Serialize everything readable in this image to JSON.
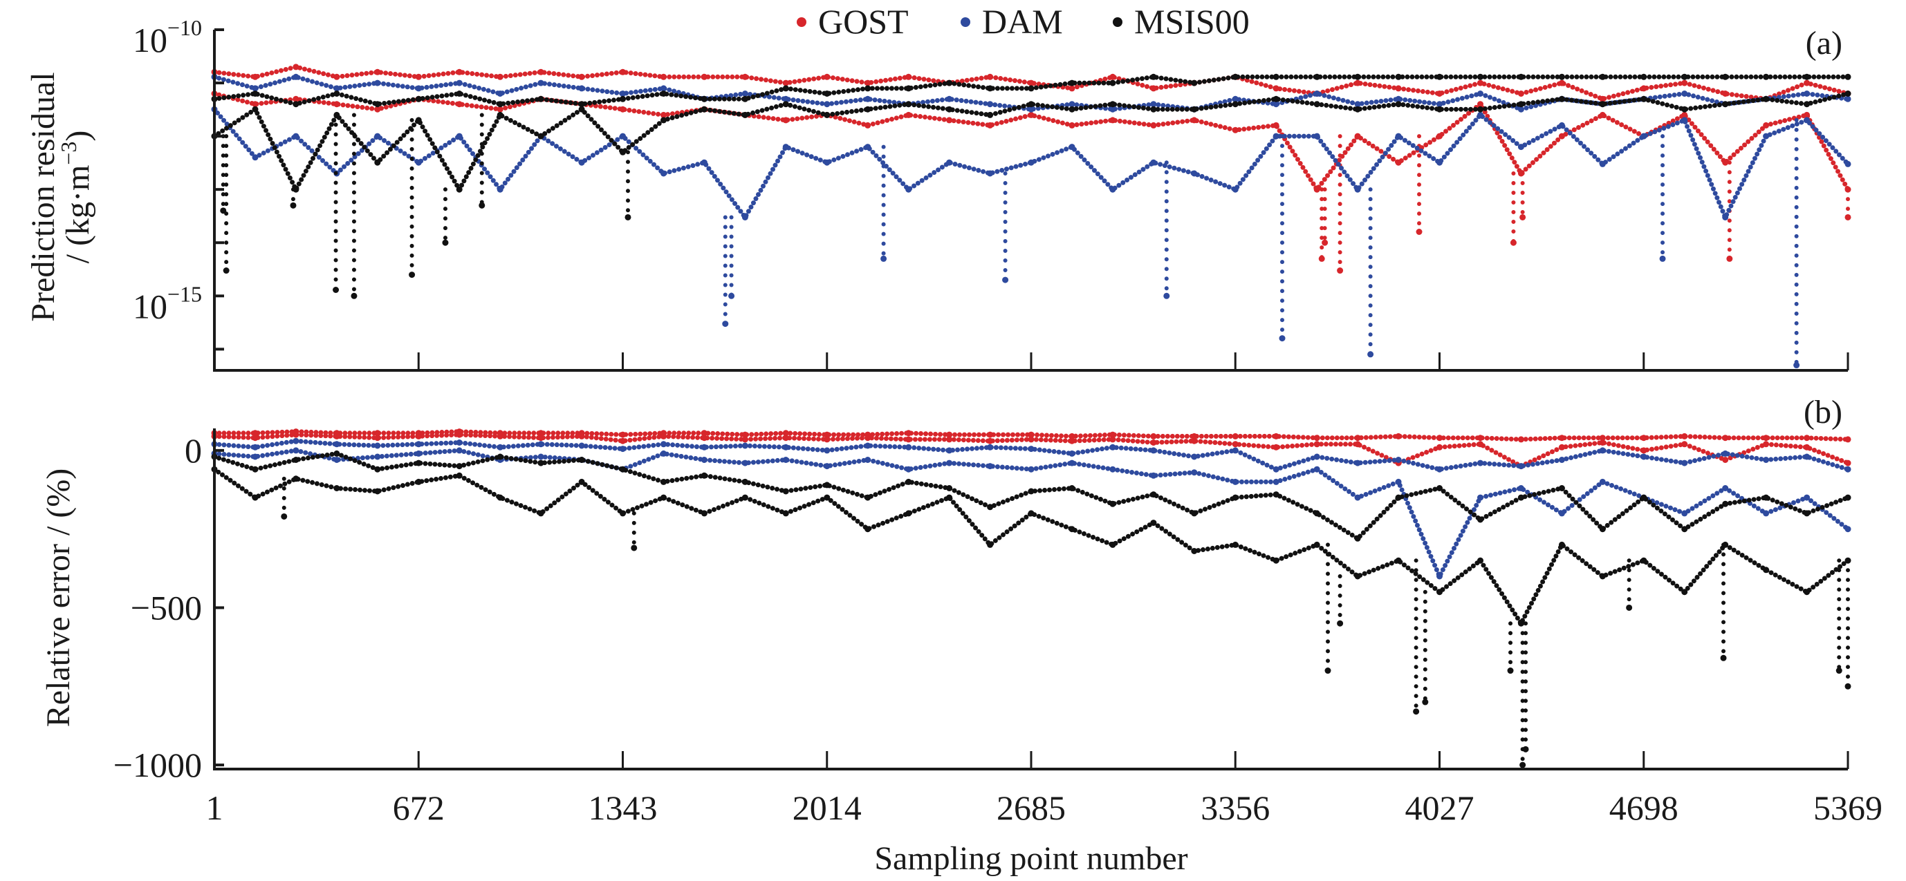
{
  "chart_data": {
    "type": "scatter",
    "legend": {
      "placement": "top-center",
      "entries": [
        {
          "label": "GOST",
          "color": "#d7262b"
        },
        {
          "label": "DAM",
          "color": "#2e4a9e"
        },
        {
          "label": "MSIS00",
          "color": "#111111"
        }
      ]
    },
    "xlabel": "Sampling point number",
    "xlim": [
      1,
      5369
    ],
    "x_ticks": [
      1,
      672,
      1343,
      2014,
      2685,
      3356,
      4027,
      4698,
      5369
    ],
    "x_tick_labels": [
      "1",
      "672",
      "1343",
      "2014",
      "2685",
      "3356",
      "4027",
      "4698",
      "5369"
    ],
    "x": [
      1,
      135,
      269,
      403,
      537,
      672,
      806,
      940,
      1074,
      1208,
      1343,
      1477,
      1611,
      1745,
      1879,
      2014,
      2148,
      2282,
      2416,
      2550,
      2685,
      2819,
      2953,
      3087,
      3221,
      3356,
      3490,
      3624,
      3758,
      3892,
      4027,
      4161,
      4295,
      4429,
      4563,
      4698,
      4832,
      4966,
      5100,
      5234,
      5369
    ],
    "panels": [
      {
        "tag": "(a)",
        "ylabel_line1": "Prediction residual",
        "ylabel_line2_pre": "/ (kg·m",
        "ylabel_line2_sup": "−3",
        "ylabel_line2_post": ")",
        "yscale": "log",
        "ylim": [
          4e-17,
          1e-10
        ],
        "y_ticks": [
          1e-10,
          1e-11,
          1e-12,
          1e-13,
          1e-14,
          1e-15,
          1e-16
        ],
        "y_tick_labels": [
          {
            "value": 1e-10,
            "base": "10",
            "exp": "−10"
          },
          {
            "value": 1e-15,
            "base": "10",
            "exp": "−15"
          }
        ],
        "series": [
          {
            "model": "GOST",
            "color": "#d7262b",
            "tracks": [
              [
                1.6e-11,
                1.3e-11,
                2e-11,
                1.3e-11,
                1.6e-11,
                1.3e-11,
                1.6e-11,
                1.3e-11,
                1.6e-11,
                1.3e-11,
                1.6e-11,
                1.3e-11,
                1.3e-11,
                1.3e-11,
                1e-11,
                1.3e-11,
                1e-11,
                1.3e-11,
                1e-11,
                1.3e-11,
                1e-11,
                7.9e-12,
                1.3e-11,
                7.9e-12,
                1e-11,
                1.3e-11,
                7.9e-12,
                6.3e-12,
                1e-11,
                7.9e-12,
                6.3e-12,
                1e-11,
                6.3e-12,
                1e-11,
                5e-12,
                7.9e-12,
                1e-11,
                6.3e-12,
                5e-12,
                1e-11,
                6.3e-12
              ],
              [
                6.3e-12,
                4e-12,
                5e-12,
                4e-12,
                3.2e-12,
                5e-12,
                4e-12,
                3.2e-12,
                5e-12,
                4e-12,
                3.2e-12,
                2.5e-12,
                3.2e-12,
                2.5e-12,
                2e-12,
                2.5e-12,
                1.6e-12,
                2.5e-12,
                2e-12,
                1.6e-12,
                2.5e-12,
                1.6e-12,
                2e-12,
                1.6e-12,
                2e-12,
                1.3e-12,
                1.6e-12,
                1e-13,
                1e-12,
                3.2e-13,
                1e-12,
                4e-12,
                2e-13,
                1e-12,
                2.5e-12,
                1e-12,
                2.5e-12,
                3.2e-13,
                1.6e-12,
                2.5e-12,
                1e-13
              ]
            ],
            "outliers": [
              [
                3640,
                5e-15
              ],
              [
                3650,
                1e-14
              ],
              [
                3700,
                3e-15
              ],
              [
                3960,
                1.6e-14
              ],
              [
                4270,
                1e-14
              ],
              [
                4300,
                3e-14
              ],
              [
                4980,
                5e-15
              ],
              [
                5369,
                3e-14
              ]
            ]
          },
          {
            "model": "DAM",
            "color": "#2e4a9e",
            "tracks": [
              [
                1.3e-11,
                7.9e-12,
                1.3e-11,
                7.9e-12,
                1e-11,
                7.9e-12,
                1e-11,
                6.3e-12,
                1e-11,
                7.9e-12,
                6.3e-12,
                7.9e-12,
                5e-12,
                6.3e-12,
                5e-12,
                4e-12,
                5e-12,
                4e-12,
                5e-12,
                4e-12,
                3.2e-12,
                4e-12,
                3.2e-12,
                4e-12,
                3.2e-12,
                5e-12,
                4e-12,
                6.3e-12,
                4e-12,
                5e-12,
                4e-12,
                6.3e-12,
                3.2e-12,
                5e-12,
                4e-12,
                5e-12,
                6.3e-12,
                4e-12,
                5e-12,
                6.3e-12,
                5e-12
              ],
              [
                3.2e-12,
                4e-13,
                1e-12,
                2e-13,
                1e-12,
                3.2e-13,
                1e-12,
                1e-13,
                1e-12,
                3.2e-13,
                1e-12,
                2e-13,
                3.2e-13,
                3e-14,
                6.3e-13,
                3.2e-13,
                6.3e-13,
                1e-13,
                3.2e-13,
                2e-13,
                3.2e-13,
                6.3e-13,
                1e-13,
                3.2e-13,
                2e-13,
                1e-13,
                1e-12,
                1e-12,
                1e-13,
                1e-12,
                3.2e-13,
                2.5e-12,
                6.3e-13,
                1.6e-12,
                3e-13,
                1e-12,
                2e-12,
                3e-14,
                1e-12,
                2e-12,
                3e-13
              ]
            ],
            "outliers": [
              [
                1680,
                3e-16
              ],
              [
                1700,
                1e-15
              ],
              [
                2200,
                5e-15
              ],
              [
                2600,
                2e-15
              ],
              [
                3130,
                1e-15
              ],
              [
                3510,
                1.6e-16
              ],
              [
                3800,
                8e-17
              ],
              [
                4760,
                5e-15
              ],
              [
                5200,
                5e-17
              ]
            ]
          },
          {
            "model": "MSIS00",
            "color": "#111111",
            "tracks": [
              [
                5e-12,
                6.3e-12,
                4e-12,
                6.3e-12,
                4e-12,
                5e-12,
                6.3e-12,
                4e-12,
                5e-12,
                4e-12,
                5e-12,
                6.3e-12,
                5e-12,
                5e-12,
                7.9e-12,
                6.3e-12,
                7.9e-12,
                7.9e-12,
                1e-11,
                7.9e-12,
                7.9e-12,
                1e-11,
                1e-11,
                1.3e-11,
                1e-11,
                1.3e-11,
                1.3e-11,
                1.3e-11,
                1.3e-11,
                1.3e-11,
                1.3e-11,
                1.3e-11,
                1.3e-11,
                1.3e-11,
                1.3e-11,
                1.3e-11,
                1.3e-11,
                1.3e-11,
                1.3e-11,
                1.3e-11,
                1.3e-11
              ],
              [
                1e-12,
                3.2e-12,
                1e-13,
                2.5e-12,
                3.2e-13,
                2e-12,
                1e-13,
                2.5e-12,
                1e-12,
                3.2e-12,
                5e-13,
                2e-12,
                3.2e-12,
                2.5e-12,
                4e-12,
                2.5e-12,
                3.2e-12,
                4e-12,
                3.2e-12,
                2.5e-12,
                4e-12,
                3.2e-12,
                4e-12,
                3.2e-12,
                3.2e-12,
                4e-12,
                5e-12,
                4e-12,
                3.2e-12,
                4e-12,
                3.2e-12,
                3.2e-12,
                4e-12,
                5e-12,
                4e-12,
                5e-12,
                3.2e-12,
                4e-12,
                5e-12,
                4e-12,
                6.3e-12
              ]
            ],
            "outliers": [
              [
                30,
                4e-14
              ],
              [
                40,
                3e-15
              ],
              [
                260,
                5e-14
              ],
              [
                400,
                1.3e-15
              ],
              [
                460,
                1e-15
              ],
              [
                650,
                2.5e-15
              ],
              [
                760,
                1e-14
              ],
              [
                880,
                5e-14
              ],
              [
                1360,
                3e-14
              ]
            ]
          }
        ]
      },
      {
        "tag": "(b)",
        "ylabel_line1": "Relative error / (%)",
        "yscale": "linear",
        "ylim": [
          -1013,
          70
        ],
        "y_ticks": [
          0,
          -500,
          -1000
        ],
        "y_tick_labels": [
          {
            "value": 0,
            "base": "0"
          },
          {
            "value": -500,
            "base": "−500"
          },
          {
            "value": -1000,
            "base": "−1000"
          }
        ],
        "series": [
          {
            "model": "GOST",
            "color": "#d7262b",
            "tracks": [
              [
                55,
                55,
                60,
                55,
                55,
                55,
                60,
                55,
                55,
                55,
                50,
                55,
                55,
                50,
                55,
                50,
                50,
                55,
                50,
                50,
                50,
                45,
                50,
                45,
                45,
                45,
                45,
                40,
                40,
                45,
                40,
                40,
                35,
                40,
                40,
                40,
                45,
                40,
                40,
                40,
                35
              ],
              [
                45,
                40,
                50,
                45,
                40,
                45,
                50,
                45,
                40,
                45,
                30,
                45,
                40,
                35,
                40,
                35,
                40,
                35,
                35,
                30,
                35,
                30,
                35,
                25,
                30,
                20,
                10,
                20,
                20,
                -40,
                10,
                20,
                -50,
                10,
                25,
                0,
                20,
                -30,
                20,
                10,
                -40
              ]
            ],
            "outliers": []
          },
          {
            "model": "DAM",
            "color": "#2e4a9e",
            "tracks": [
              [
                20,
                10,
                30,
                20,
                15,
                20,
                25,
                10,
                20,
                15,
                5,
                20,
                10,
                15,
                10,
                0,
                15,
                10,
                0,
                10,
                5,
                -10,
                10,
                0,
                -20,
                0,
                -60,
                -20,
                -40,
                -30,
                -60,
                -40,
                -50,
                -30,
                0,
                -20,
                -40,
                -10,
                -30,
                -20,
                -60
              ],
              [
                -10,
                -20,
                0,
                -30,
                -20,
                -10,
                0,
                -30,
                -20,
                -30,
                -60,
                -10,
                -30,
                -40,
                -30,
                -50,
                -30,
                -60,
                -40,
                -50,
                -60,
                -40,
                -60,
                -80,
                -70,
                -100,
                -100,
                -60,
                -150,
                -100,
                -400,
                -150,
                -120,
                -200,
                -100,
                -150,
                -200,
                -120,
                -200,
                -150,
                -250
              ]
            ],
            "outliers": []
          },
          {
            "model": "MSIS00",
            "color": "#111111",
            "tracks": [
              [
                -20,
                -60,
                -30,
                -10,
                -60,
                -40,
                -50,
                -20,
                -40,
                -30,
                -60,
                -100,
                -80,
                -100,
                -130,
                -110,
                -150,
                -100,
                -120,
                -180,
                -130,
                -120,
                -170,
                -140,
                -200,
                -150,
                -140,
                -200,
                -280,
                -150,
                -120,
                -220,
                -150,
                -120,
                -250,
                -150,
                -250,
                -170,
                -150,
                -200,
                -150
              ],
              [
                -60,
                -150,
                -90,
                -120,
                -130,
                -100,
                -80,
                -150,
                -200,
                -100,
                -200,
                -150,
                -200,
                -150,
                -200,
                -150,
                -250,
                -200,
                -150,
                -300,
                -200,
                -250,
                -300,
                -230,
                -320,
                -300,
                -350,
                -300,
                -400,
                -350,
                -450,
                -350,
                -550,
                -300,
                -400,
                -350,
                -450,
                -300,
                -380,
                -450,
                -350
              ]
            ],
            "outliers": [
              [
                230,
                -210
              ],
              [
                1380,
                -310
              ],
              [
                3660,
                -700
              ],
              [
                3700,
                -550
              ],
              [
                3950,
                -830
              ],
              [
                3980,
                -800
              ],
              [
                4260,
                -700
              ],
              [
                4300,
                -1000
              ],
              [
                4310,
                -950
              ],
              [
                4650,
                -500
              ],
              [
                4960,
                -660
              ],
              [
                5340,
                -700
              ],
              [
                5369,
                -750
              ]
            ]
          }
        ]
      }
    ]
  }
}
